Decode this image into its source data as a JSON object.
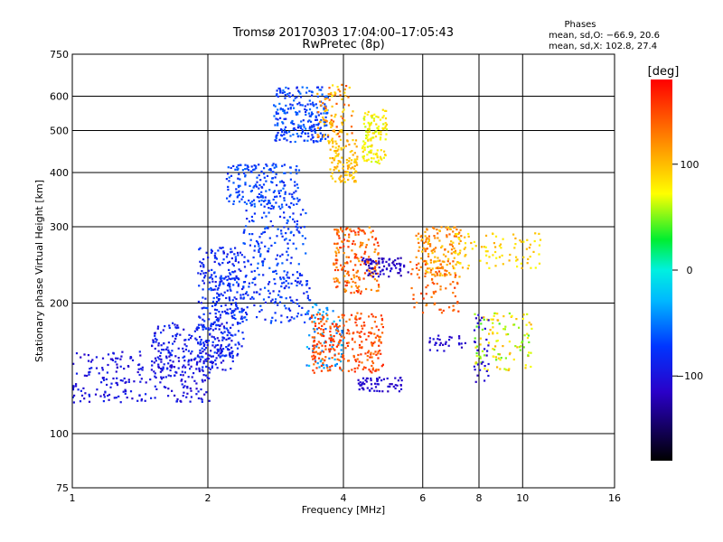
{
  "chart_data": {
    "type": "scatter",
    "title": "Tromsø 20170303 17:04:00–17:05:43",
    "subtitle": "RwPretec (8p)",
    "xlabel": "Frequency [MHz]",
    "ylabel": "Stationary phase Virtual Height [km]",
    "x_scale": "log",
    "y_scale": "log",
    "xlim": [
      1,
      16
    ],
    "ylim": [
      75,
      750
    ],
    "x_ticks": [
      "1",
      "2",
      "4",
      "6",
      "8",
      "10",
      "16"
    ],
    "x_tick_values": [
      1,
      2,
      4,
      6,
      8,
      10,
      16
    ],
    "y_ticks": [
      "75",
      "100",
      "200",
      "300",
      "400",
      "500",
      "600",
      "750"
    ],
    "y_tick_values": [
      75,
      100,
      200,
      300,
      400,
      500,
      600,
      750
    ],
    "grid": true,
    "colorbar": {
      "label": "[deg]",
      "range": [
        -180,
        180
      ],
      "tick_labels": [
        "100",
        "0",
        "−100"
      ],
      "tick_values": [
        100,
        0,
        -100
      ]
    },
    "stats": {
      "heading": "Phases",
      "line1": "mean, sd,O: −66.9, 20.6",
      "line2": "mean, sd,X: 102.8, 27.4"
    },
    "clusters": [
      {
        "f": [
          1.0,
          2.05
        ],
        "h": [
          118,
          155
        ],
        "phase": [
          -115,
          -85
        ],
        "n": 260
      },
      {
        "f": [
          1.5,
          2.3
        ],
        "h": [
          140,
          180
        ],
        "phase": [
          -110,
          -75
        ],
        "n": 180
      },
      {
        "f": [
          1.9,
          2.4
        ],
        "h": [
          150,
          270
        ],
        "phase": [
          -100,
          -65
        ],
        "n": 260
      },
      {
        "f": [
          2.0,
          3.4
        ],
        "h": [
          180,
          230
        ],
        "phase": [
          -95,
          -60
        ],
        "n": 180
      },
      {
        "f": [
          2.2,
          3.2
        ],
        "h": [
          330,
          420
        ],
        "phase": [
          -85,
          -55
        ],
        "n": 200
      },
      {
        "f": [
          2.8,
          3.7
        ],
        "h": [
          470,
          630
        ],
        "phase": [
          -90,
          -50
        ],
        "n": 240
      },
      {
        "f": [
          2.4,
          3.3
        ],
        "h": [
          230,
          330
        ],
        "phase": [
          -90,
          -55
        ],
        "n": 140
      },
      {
        "f": [
          3.3,
          4.0
        ],
        "h": [
          140,
          200
        ],
        "phase": [
          -60,
          -20
        ],
        "n": 80
      },
      {
        "f": [
          3.4,
          4.9
        ],
        "h": [
          138,
          190
        ],
        "phase": [
          130,
          165
        ],
        "n": 260
      },
      {
        "f": [
          3.8,
          4.8
        ],
        "h": [
          210,
          300
        ],
        "phase": [
          110,
          165
        ],
        "n": 200
      },
      {
        "f": [
          3.7,
          4.3
        ],
        "h": [
          380,
          480
        ],
        "phase": [
          85,
          115
        ],
        "n": 120
      },
      {
        "f": [
          4.4,
          5.0
        ],
        "h": [
          420,
          560
        ],
        "phase": [
          60,
          95
        ],
        "n": 120
      },
      {
        "f": [
          3.5,
          4.2
        ],
        "h": [
          480,
          640
        ],
        "phase": [
          80,
          150
        ],
        "n": 90
      },
      {
        "f": [
          4.3,
          5.4
        ],
        "h": [
          125,
          135
        ],
        "phase": [
          -120,
          -100
        ],
        "n": 60
      },
      {
        "f": [
          4.4,
          5.6
        ],
        "h": [
          230,
          255
        ],
        "phase": [
          -130,
          -100
        ],
        "n": 80
      },
      {
        "f": [
          5.8,
          7.3
        ],
        "h": [
          230,
          300
        ],
        "phase": [
          90,
          140
        ],
        "n": 150
      },
      {
        "f": [
          5.6,
          7.2
        ],
        "h": [
          190,
          250
        ],
        "phase": [
          120,
          160
        ],
        "n": 70
      },
      {
        "f": [
          7.0,
          11.0
        ],
        "h": [
          240,
          290
        ],
        "phase": [
          70,
          110
        ],
        "n": 90
      },
      {
        "f": [
          7.8,
          10.5
        ],
        "h": [
          140,
          190
        ],
        "phase": [
          40,
          110
        ],
        "n": 110
      },
      {
        "f": [
          6.2,
          7.5
        ],
        "h": [
          155,
          170
        ],
        "phase": [
          -120,
          -100
        ],
        "n": 30
      },
      {
        "f": [
          7.8,
          8.4
        ],
        "h": [
          130,
          190
        ],
        "phase": [
          -120,
          -100
        ],
        "n": 30
      }
    ]
  }
}
